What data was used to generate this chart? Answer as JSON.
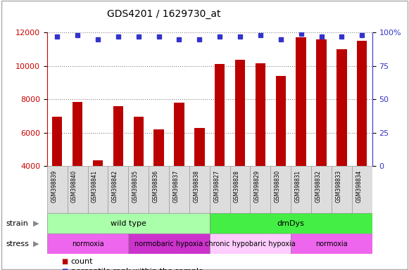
{
  "title": "GDS4201 / 1629730_at",
  "samples": [
    "GSM398839",
    "GSM398840",
    "GSM398841",
    "GSM398842",
    "GSM398835",
    "GSM398836",
    "GSM398837",
    "GSM398838",
    "GSM398827",
    "GSM398828",
    "GSM398829",
    "GSM398830",
    "GSM398831",
    "GSM398832",
    "GSM398833",
    "GSM398834"
  ],
  "counts": [
    6950,
    7850,
    4350,
    7600,
    6950,
    6200,
    7800,
    6300,
    10100,
    10350,
    10150,
    9400,
    11700,
    11600,
    11000,
    11500
  ],
  "percentile_ranks": [
    97,
    98,
    95,
    97,
    97,
    97,
    95,
    95,
    97,
    97,
    98,
    95,
    99,
    97,
    97,
    98
  ],
  "bar_color": "#bb0000",
  "dot_color": "#3333cc",
  "left_color": "#cc0000",
  "right_color": "#3333cc",
  "ylim_left": [
    4000,
    12000
  ],
  "ylim_right": [
    0,
    100
  ],
  "yticks_left": [
    4000,
    6000,
    8000,
    10000,
    12000
  ],
  "yticks_right": [
    0,
    25,
    50,
    75,
    100
  ],
  "strain_groups": [
    {
      "label": "wild type",
      "start": 0,
      "end": 8,
      "color": "#aaffaa"
    },
    {
      "label": "dmDys",
      "start": 8,
      "end": 16,
      "color": "#44ee44"
    }
  ],
  "stress_groups": [
    {
      "label": "normoxia",
      "start": 0,
      "end": 4,
      "color": "#ee66ee"
    },
    {
      "label": "normobaric hypoxia",
      "start": 4,
      "end": 8,
      "color": "#cc33cc"
    },
    {
      "label": "chronic hypobaric hypoxia",
      "start": 8,
      "end": 12,
      "color": "#ffccff"
    },
    {
      "label": "normoxia",
      "start": 12,
      "end": 16,
      "color": "#ee66ee"
    }
  ],
  "background_color": "#ffffff",
  "plot_bg_color": "#ffffff",
  "tick_bg_color": "#dddddd",
  "grid_color": "#000000",
  "border_color": "#aaaaaa"
}
